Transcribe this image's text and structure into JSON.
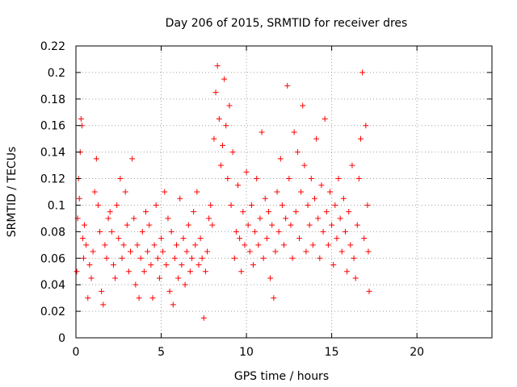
{
  "chart_data": {
    "type": "scatter",
    "title": "Day 206 of 2015, SRMTID for receiver dres",
    "xlabel": "GPS time / hours",
    "ylabel": "SRMTID / TECUs",
    "xlim": [
      0,
      24.4
    ],
    "ylim": [
      0,
      0.22
    ],
    "xticks": [
      0,
      5,
      10,
      15,
      20
    ],
    "xtick_labels": [
      "0",
      "5",
      "10",
      "15",
      "20"
    ],
    "yticks": [
      0,
      0.02,
      0.04,
      0.06,
      0.08,
      0.1,
      0.12,
      0.14,
      0.16,
      0.18,
      0.2,
      0.22
    ],
    "ytick_labels": [
      "0",
      "0.02",
      "0.04",
      "0.06",
      "0.08",
      "0.1",
      "0.12",
      "0.14",
      "0.16",
      "0.18",
      "0.2",
      "0.22"
    ],
    "grid": true,
    "marker": "plus",
    "color": "#ff0000",
    "x_data_range": [
      0,
      17.2
    ],
    "series": [
      {
        "name": "SRMTID",
        "points": [
          [
            0.05,
            0.05
          ],
          [
            0.1,
            0.09
          ],
          [
            0.15,
            0.12
          ],
          [
            0.2,
            0.105
          ],
          [
            0.25,
            0.14
          ],
          [
            0.3,
            0.165
          ],
          [
            0.35,
            0.16
          ],
          [
            0.4,
            0.075
          ],
          [
            0.45,
            0.06
          ],
          [
            0.5,
            0.085
          ],
          [
            0.6,
            0.07
          ],
          [
            0.7,
            0.03
          ],
          [
            0.8,
            0.055
          ],
          [
            0.9,
            0.045
          ],
          [
            1.0,
            0.065
          ],
          [
            1.1,
            0.11
          ],
          [
            1.2,
            0.135
          ],
          [
            1.3,
            0.1
          ],
          [
            1.4,
            0.08
          ],
          [
            1.5,
            0.035
          ],
          [
            1.6,
            0.025
          ],
          [
            1.7,
            0.07
          ],
          [
            1.8,
            0.06
          ],
          [
            1.9,
            0.09
          ],
          [
            2.0,
            0.095
          ],
          [
            2.1,
            0.08
          ],
          [
            2.2,
            0.055
          ],
          [
            2.3,
            0.045
          ],
          [
            2.4,
            0.1
          ],
          [
            2.5,
            0.075
          ],
          [
            2.6,
            0.12
          ],
          [
            2.7,
            0.06
          ],
          [
            2.8,
            0.07
          ],
          [
            2.9,
            0.11
          ],
          [
            3.0,
            0.085
          ],
          [
            3.1,
            0.05
          ],
          [
            3.2,
            0.065
          ],
          [
            3.3,
            0.135
          ],
          [
            3.4,
            0.09
          ],
          [
            3.5,
            0.04
          ],
          [
            3.6,
            0.07
          ],
          [
            3.7,
            0.03
          ],
          [
            3.8,
            0.06
          ],
          [
            3.9,
            0.08
          ],
          [
            4.0,
            0.05
          ],
          [
            4.1,
            0.095
          ],
          [
            4.2,
            0.065
          ],
          [
            4.3,
            0.085
          ],
          [
            4.4,
            0.055
          ],
          [
            4.5,
            0.03
          ],
          [
            4.6,
            0.07
          ],
          [
            4.7,
            0.1
          ],
          [
            4.8,
            0.06
          ],
          [
            4.9,
            0.045
          ],
          [
            5.0,
            0.075
          ],
          [
            5.1,
            0.065
          ],
          [
            5.2,
            0.11
          ],
          [
            5.3,
            0.055
          ],
          [
            5.4,
            0.09
          ],
          [
            5.5,
            0.035
          ],
          [
            5.6,
            0.08
          ],
          [
            5.7,
            0.025
          ],
          [
            5.8,
            0.06
          ],
          [
            5.9,
            0.07
          ],
          [
            6.0,
            0.045
          ],
          [
            6.1,
            0.105
          ],
          [
            6.2,
            0.055
          ],
          [
            6.3,
            0.075
          ],
          [
            6.4,
            0.04
          ],
          [
            6.5,
            0.065
          ],
          [
            6.6,
            0.085
          ],
          [
            6.7,
            0.05
          ],
          [
            6.8,
            0.06
          ],
          [
            6.9,
            0.095
          ],
          [
            7.0,
            0.07
          ],
          [
            7.1,
            0.11
          ],
          [
            7.2,
            0.055
          ],
          [
            7.3,
            0.075
          ],
          [
            7.4,
            0.06
          ],
          [
            7.5,
            0.015
          ],
          [
            7.6,
            0.05
          ],
          [
            7.7,
            0.065
          ],
          [
            7.8,
            0.09
          ],
          [
            7.9,
            0.1
          ],
          [
            8.0,
            0.085
          ],
          [
            8.1,
            0.15
          ],
          [
            8.2,
            0.185
          ],
          [
            8.3,
            0.205
          ],
          [
            8.4,
            0.165
          ],
          [
            8.5,
            0.13
          ],
          [
            8.6,
            0.145
          ],
          [
            8.7,
            0.195
          ],
          [
            8.8,
            0.16
          ],
          [
            8.9,
            0.12
          ],
          [
            9.0,
            0.175
          ],
          [
            9.1,
            0.1
          ],
          [
            9.2,
            0.14
          ],
          [
            9.3,
            0.06
          ],
          [
            9.4,
            0.08
          ],
          [
            9.5,
            0.115
          ],
          [
            9.6,
            0.075
          ],
          [
            9.7,
            0.05
          ],
          [
            9.8,
            0.095
          ],
          [
            9.9,
            0.07
          ],
          [
            10.0,
            0.125
          ],
          [
            10.1,
            0.085
          ],
          [
            10.2,
            0.065
          ],
          [
            10.3,
            0.1
          ],
          [
            10.4,
            0.055
          ],
          [
            10.5,
            0.08
          ],
          [
            10.6,
            0.12
          ],
          [
            10.7,
            0.07
          ],
          [
            10.8,
            0.09
          ],
          [
            10.9,
            0.155
          ],
          [
            11.0,
            0.06
          ],
          [
            11.1,
            0.105
          ],
          [
            11.2,
            0.075
          ],
          [
            11.3,
            0.095
          ],
          [
            11.4,
            0.045
          ],
          [
            11.5,
            0.085
          ],
          [
            11.6,
            0.03
          ],
          [
            11.7,
            0.065
          ],
          [
            11.8,
            0.11
          ],
          [
            11.9,
            0.08
          ],
          [
            12.0,
            0.135
          ],
          [
            12.1,
            0.1
          ],
          [
            12.2,
            0.07
          ],
          [
            12.3,
            0.09
          ],
          [
            12.4,
            0.19
          ],
          [
            12.5,
            0.12
          ],
          [
            12.6,
            0.085
          ],
          [
            12.7,
            0.06
          ],
          [
            12.8,
            0.155
          ],
          [
            12.9,
            0.095
          ],
          [
            13.0,
            0.14
          ],
          [
            13.1,
            0.075
          ],
          [
            13.2,
            0.11
          ],
          [
            13.3,
            0.175
          ],
          [
            13.4,
            0.13
          ],
          [
            13.5,
            0.065
          ],
          [
            13.6,
            0.1
          ],
          [
            13.7,
            0.085
          ],
          [
            13.8,
            0.12
          ],
          [
            13.9,
            0.07
          ],
          [
            14.0,
            0.105
          ],
          [
            14.1,
            0.15
          ],
          [
            14.2,
            0.09
          ],
          [
            14.3,
            0.06
          ],
          [
            14.4,
            0.115
          ],
          [
            14.5,
            0.08
          ],
          [
            14.6,
            0.165
          ],
          [
            14.7,
            0.095
          ],
          [
            14.8,
            0.07
          ],
          [
            14.9,
            0.11
          ],
          [
            15.0,
            0.085
          ],
          [
            15.1,
            0.055
          ],
          [
            15.2,
            0.1
          ],
          [
            15.3,
            0.075
          ],
          [
            15.4,
            0.12
          ],
          [
            15.5,
            0.09
          ],
          [
            15.6,
            0.065
          ],
          [
            15.7,
            0.105
          ],
          [
            15.8,
            0.08
          ],
          [
            15.9,
            0.05
          ],
          [
            16.0,
            0.095
          ],
          [
            16.1,
            0.07
          ],
          [
            16.2,
            0.13
          ],
          [
            16.3,
            0.06
          ],
          [
            16.4,
            0.045
          ],
          [
            16.5,
            0.085
          ],
          [
            16.6,
            0.12
          ],
          [
            16.7,
            0.15
          ],
          [
            16.8,
            0.2
          ],
          [
            16.9,
            0.075
          ],
          [
            17.0,
            0.16
          ],
          [
            17.1,
            0.1
          ],
          [
            17.15,
            0.065
          ],
          [
            17.2,
            0.035
          ]
        ]
      }
    ]
  }
}
